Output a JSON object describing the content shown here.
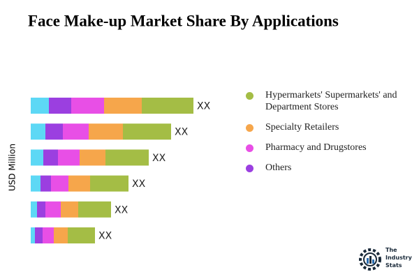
{
  "chart_data": {
    "type": "bar",
    "orientation": "horizontal",
    "stacked": true,
    "title": "Face Make-up Market Share By Applications",
    "y_label": "USD Million",
    "xlim": [
      0,
      260
    ],
    "series": [
      {
        "color": "#5dd8f5",
        "values": [
          26,
          21,
          18,
          14,
          9,
          6
        ]
      },
      {
        "name": "Others",
        "color": "#9b3fe0",
        "values": [
          32,
          25,
          21,
          15,
          12,
          11
        ]
      },
      {
        "name": "Pharmacy and Drugstores",
        "color": "#e84fe6",
        "values": [
          47,
          37,
          31,
          25,
          22,
          16
        ]
      },
      {
        "name": "Specialty Retailers",
        "color": "#f6a64b",
        "values": [
          54,
          49,
          37,
          31,
          25,
          20
        ]
      },
      {
        "name": "Hypermarkets' Supermarkets' and Department Stores",
        "color": "#a4bd45",
        "values": [
          74,
          69,
          62,
          55,
          47,
          39
        ]
      }
    ],
    "total_labels": [
      "XX",
      "XX",
      "XX",
      "XX",
      "XX",
      "XX"
    ]
  },
  "logo": {
    "line1": "The",
    "line2": "Industry",
    "line3": "Stats"
  }
}
